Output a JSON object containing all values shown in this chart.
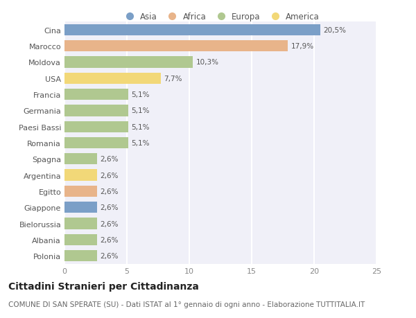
{
  "countries": [
    "Cina",
    "Marocco",
    "Moldova",
    "USA",
    "Francia",
    "Germania",
    "Paesi Bassi",
    "Romania",
    "Spagna",
    "Argentina",
    "Egitto",
    "Giappone",
    "Bielorussia",
    "Albania",
    "Polonia"
  ],
  "values": [
    20.5,
    17.9,
    10.3,
    7.7,
    5.1,
    5.1,
    5.1,
    5.1,
    2.6,
    2.6,
    2.6,
    2.6,
    2.6,
    2.6,
    2.6
  ],
  "labels": [
    "20,5%",
    "17,9%",
    "10,3%",
    "7,7%",
    "5,1%",
    "5,1%",
    "5,1%",
    "5,1%",
    "2,6%",
    "2,6%",
    "2,6%",
    "2,6%",
    "2,6%",
    "2,6%",
    "2,6%"
  ],
  "continents": [
    "Asia",
    "Africa",
    "Europa",
    "America",
    "Europa",
    "Europa",
    "Europa",
    "Europa",
    "Europa",
    "America",
    "Africa",
    "Asia",
    "Europa",
    "Europa",
    "Europa"
  ],
  "colors": {
    "Asia": "#7b9fc7",
    "Africa": "#e8b48a",
    "Europa": "#b0c890",
    "America": "#f2d878"
  },
  "legend_order": [
    "Asia",
    "Africa",
    "Europa",
    "America"
  ],
  "legend_colors": [
    "#7b9fc7",
    "#e8b48a",
    "#b0c890",
    "#f2d878"
  ],
  "xlim": [
    0,
    25
  ],
  "xticks": [
    0,
    5,
    10,
    15,
    20,
    25
  ],
  "title": "Cittadini Stranieri per Cittadinanza",
  "subtitle": "COMUNE DI SAN SPERATE (SU) - Dati ISTAT al 1° gennaio di ogni anno - Elaborazione TUTTITALIA.IT",
  "bg_color": "#ffffff",
  "chart_bg": "#f0f0f8",
  "bar_height": 0.7,
  "title_fontsize": 10,
  "subtitle_fontsize": 7.5,
  "label_fontsize": 7.5,
  "tick_fontsize": 8,
  "legend_fontsize": 8.5
}
